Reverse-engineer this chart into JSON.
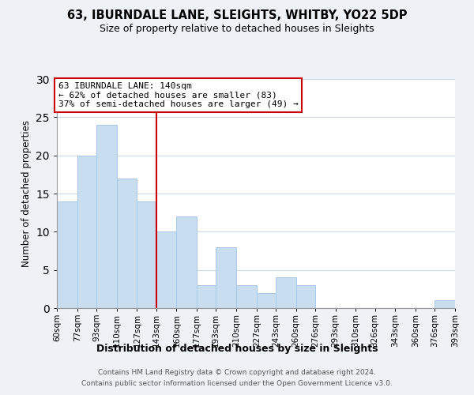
{
  "title": "63, IBURNDALE LANE, SLEIGHTS, WHITBY, YO22 5DP",
  "subtitle": "Size of property relative to detached houses in Sleights",
  "xlabel": "Distribution of detached houses by size in Sleights",
  "ylabel": "Number of detached properties",
  "bar_color": "#c8ddf0",
  "bar_edge_color": "#a8c8e8",
  "vline_x": 143,
  "vline_color": "#cc0000",
  "bin_edges": [
    60,
    77,
    93,
    110,
    127,
    143,
    160,
    177,
    193,
    210,
    227,
    243,
    260,
    276,
    293,
    310,
    326,
    343,
    360,
    376,
    393
  ],
  "bin_labels": [
    "60sqm",
    "77sqm",
    "93sqm",
    "110sqm",
    "127sqm",
    "143sqm",
    "160sqm",
    "177sqm",
    "193sqm",
    "210sqm",
    "227sqm",
    "243sqm",
    "260sqm",
    "276sqm",
    "293sqm",
    "310sqm",
    "326sqm",
    "343sqm",
    "360sqm",
    "376sqm",
    "393sqm"
  ],
  "counts": [
    14,
    20,
    24,
    17,
    14,
    10,
    12,
    3,
    8,
    3,
    2,
    4,
    3,
    0,
    0,
    0,
    0,
    0,
    0,
    1
  ],
  "ylim": [
    0,
    30
  ],
  "yticks": [
    0,
    5,
    10,
    15,
    20,
    25,
    30
  ],
  "annotation_title": "63 IBURNDALE LANE: 140sqm",
  "annotation_line1": "← 62% of detached houses are smaller (83)",
  "annotation_line2": "37% of semi-detached houses are larger (49) →",
  "annotation_box_color": "#ffffff",
  "annotation_box_edge": "#cc0000",
  "footer1": "Contains HM Land Registry data © Crown copyright and database right 2024.",
  "footer2": "Contains public sector information licensed under the Open Government Licence v3.0.",
  "background_color": "#eef2f7",
  "plot_bg_color": "#ffffff",
  "grid_color": "#ccd9e8"
}
